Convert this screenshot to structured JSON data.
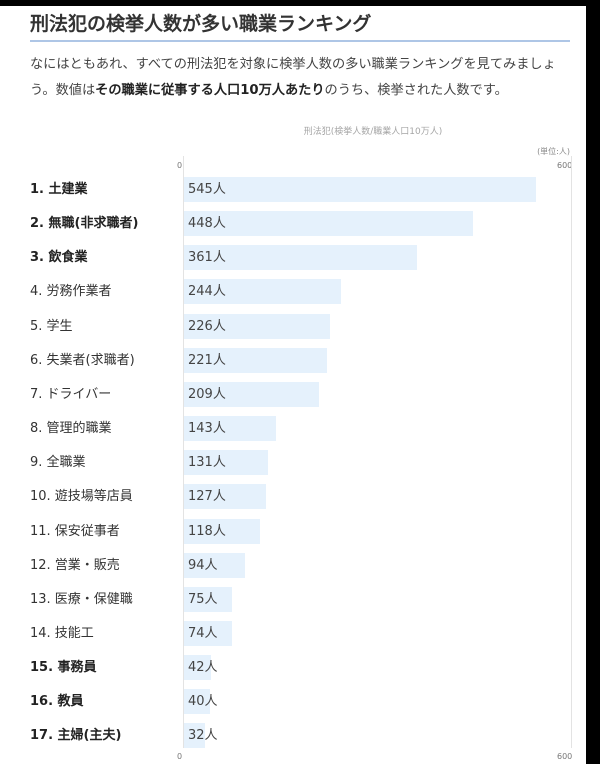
{
  "header": {
    "title": "刑法犯の検挙人数が多い職業ランキング",
    "intro_part1": "なにはともあれ、すべての刑法犯を対象に検挙人数の多い職業ランキングを見てみましょう。数値は",
    "intro_bold": "その職業に従事する人口10万人あたり",
    "intro_part2": "のうち、検挙された人数です。"
  },
  "chart_data": {
    "type": "bar",
    "orientation": "horizontal",
    "title": "刑法犯(検挙人数/職業人口10万人)",
    "unit_note": "(単位:人)",
    "xlim": [
      0,
      600
    ],
    "tick_min_label": "0",
    "tick_max_label": "600",
    "value_suffix": "人",
    "categories": [
      "1. 土建業",
      "2. 無職(非求職者)",
      "3. 飲食業",
      "4. 労務作業者",
      "5. 学生",
      "6. 失業者(求職者)",
      "7. ドライバー",
      "8. 管理的職業",
      "9. 全職業",
      "10. 遊技場等店員",
      "11. 保安従事者",
      "12. 営業・販売",
      "13. 医療・保健職",
      "14. 技能工",
      "15. 事務員",
      "16. 教員",
      "17. 主婦(主夫)"
    ],
    "values": [
      545,
      448,
      361,
      244,
      226,
      221,
      209,
      143,
      131,
      127,
      118,
      94,
      75,
      74,
      42,
      40,
      32
    ],
    "bold_categories": [
      true,
      true,
      true,
      false,
      false,
      false,
      false,
      false,
      false,
      false,
      false,
      false,
      false,
      false,
      true,
      true,
      true
    ]
  }
}
